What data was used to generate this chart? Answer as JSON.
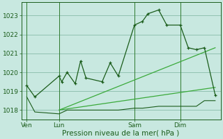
{
  "background_color": "#c8e8e0",
  "plot_background_color": "#c8e8e0",
  "grid_color": "#88bbaa",
  "line_color_dark": "#1a5c1a",
  "line_color_mid": "#2e8b2e",
  "line_color_light": "#3aaa3a",
  "ylim": [
    1017.5,
    1023.7
  ],
  "yticks": [
    1018,
    1019,
    1020,
    1021,
    1022,
    1023
  ],
  "xlabel": "Pression niveau de la mer( hPa )",
  "xlabel_fontsize": 7.5,
  "tick_fontsize": 6.5,
  "xtick_labels": [
    "Ven",
    "Lun",
    "Sam",
    "Dim"
  ],
  "xtick_positions": [
    0,
    12,
    40,
    57
  ],
  "xlim": [
    -2,
    72
  ],
  "series1_x": [
    0,
    3,
    12,
    13,
    15,
    18,
    20,
    22,
    28,
    31,
    34,
    40,
    43,
    45,
    49,
    52,
    57,
    60,
    63,
    66,
    70
  ],
  "series1_y": [
    1019.3,
    1018.7,
    1019.8,
    1019.5,
    1020.0,
    1019.4,
    1020.6,
    1019.7,
    1019.5,
    1020.5,
    1019.8,
    1022.5,
    1022.7,
    1023.1,
    1023.3,
    1022.5,
    1022.5,
    1021.3,
    1021.2,
    1021.3,
    1018.8
  ],
  "series2_x": [
    0,
    3,
    12,
    15,
    20,
    28,
    34,
    40,
    43,
    49,
    52,
    57,
    60,
    63,
    66,
    70
  ],
  "series2_y": [
    1018.7,
    1017.9,
    1017.8,
    1018.0,
    1018.0,
    1018.0,
    1018.0,
    1018.1,
    1018.1,
    1018.2,
    1018.2,
    1018.2,
    1018.2,
    1018.2,
    1018.5,
    1018.5
  ],
  "series3_x": [
    12,
    70
  ],
  "series3_y": [
    1018.0,
    1021.3
  ],
  "series4_x": [
    12,
    70
  ],
  "series4_y": [
    1018.0,
    1019.2
  ],
  "vline_x": [
    0,
    12,
    40,
    57
  ],
  "vline_color": "#2e7a2e"
}
